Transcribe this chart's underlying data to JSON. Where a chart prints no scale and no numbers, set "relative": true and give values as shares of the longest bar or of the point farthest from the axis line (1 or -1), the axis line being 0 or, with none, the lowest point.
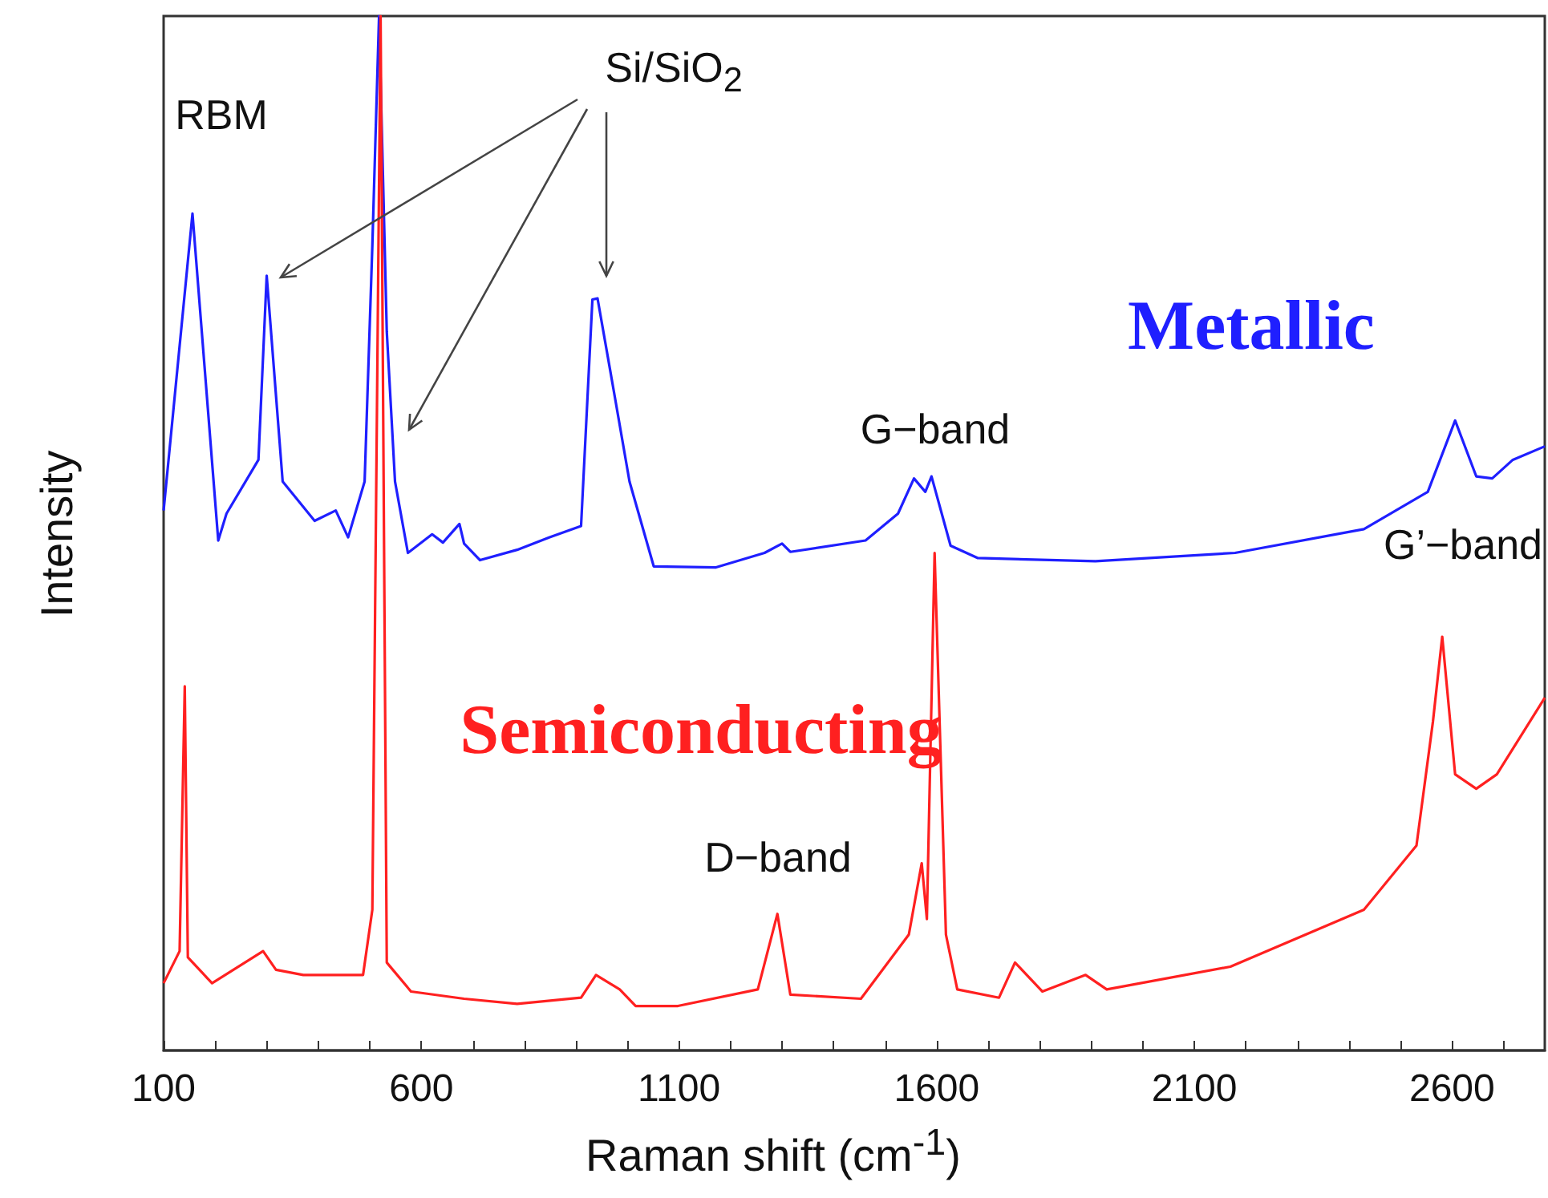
{
  "chart_data": {
    "type": "line",
    "relative": true,
    "xlabel": "Raman shift (cm$^{-1}$)",
    "ylabel": "Intensity",
    "xlim": [
      100,
      2780
    ],
    "xticks": [
      100,
      {
        "value": 200,
        "label": null
      },
      {
        "value": 300,
        "label": null
      },
      {
        "value": 400,
        "label": null
      },
      {
        "value": 500,
        "label": null
      },
      600,
      {
        "value": 700,
        "label": null
      },
      {
        "value": 800,
        "label": null
      },
      {
        "value": 900,
        "label": null
      },
      {
        "value": 1000,
        "label": null
      },
      1100,
      {
        "value": 1200,
        "label": null
      },
      {
        "value": 1300,
        "label": null
      },
      {
        "value": 1400,
        "label": null
      },
      {
        "value": 1500,
        "label": null
      },
      1600,
      {
        "value": 1700,
        "label": null
      },
      {
        "value": 1800,
        "label": null
      },
      {
        "value": 1900,
        "label": null
      },
      {
        "value": 2000,
        "label": null
      },
      2100,
      {
        "value": 2200,
        "label": null
      },
      {
        "value": 2300,
        "label": null
      },
      {
        "value": 2400,
        "label": null
      },
      {
        "value": 2500,
        "label": null
      },
      2600,
      {
        "value": 2700,
        "label": null
      }
    ],
    "marker": "none",
    "line_style": "solid",
    "annotations": [
      "RBM",
      "Si/SiO$_{2}$",
      "G−band",
      "D−band",
      "G’−band"
    ],
    "series": [
      {
        "name": "Metallic",
        "color": "#1f1fff",
        "x": [
          100,
          156,
          206,
          222,
          284,
          300,
          331,
          393,
          434,
          458,
          490,
          505,
          518,
          533,
          549,
          574,
          621,
          642,
          674,
          683,
          714,
          786,
          848,
          910,
          932,
          942,
          973,
          1004,
          1051,
          1172,
          1266,
          1300,
          1316,
          1462,
          1525,
          1556,
          1578,
          1590,
          1627,
          1680,
          1908,
          2179,
          2429,
          2553,
          2606,
          2647,
          2678,
          2718,
          2780
        ],
        "values": [
          0.522,
          0.809,
          0.493,
          0.519,
          0.571,
          0.749,
          0.55,
          0.512,
          0.522,
          0.496,
          0.55,
          0.778,
          1,
          0.695,
          0.55,
          0.481,
          0.499,
          0.491,
          0.509,
          0.49,
          0.474,
          0.484,
          0.496,
          0.507,
          0.726,
          0.727,
          0.639,
          0.55,
          0.468,
          0.467,
          0.481,
          0.49,
          0.482,
          0.493,
          0.519,
          0.553,
          0.54,
          0.555,
          0.488,
          0.476,
          0.473,
          0.481,
          0.504,
          0.54,
          0.609,
          0.555,
          0.553,
          0.571,
          0.584
        ]
      },
      {
        "name": "Semiconducting",
        "color": "#ff2020",
        "x": [
          100,
          131,
          141,
          147,
          194,
          293,
          318,
          371,
          487,
          505,
          521,
          533,
          580,
          683,
          786,
          910,
          939,
          985,
          1016,
          1098,
          1253,
          1291,
          1316,
          1453,
          1546,
          1571,
          1581,
          1596,
          1618,
          1640,
          1721,
          1752,
          1805,
          1889,
          1930,
          2170,
          2429,
          2531,
          2563,
          2581,
          2606,
          2647,
          2687,
          2780
        ],
        "values": [
          0.065,
          0.096,
          0.352,
          0.09,
          0.065,
          0.096,
          0.078,
          0.073,
          0.073,
          0.136,
          1,
          0.085,
          0.057,
          0.05,
          0.045,
          0.051,
          0.073,
          0.059,
          0.043,
          0.043,
          0.059,
          0.132,
          0.054,
          0.05,
          0.112,
          0.181,
          0.127,
          0.481,
          0.112,
          0.059,
          0.051,
          0.085,
          0.057,
          0.073,
          0.059,
          0.081,
          0.136,
          0.198,
          0.318,
          0.4,
          0.267,
          0.253,
          0.267,
          0.341
        ]
      }
    ]
  }
}
